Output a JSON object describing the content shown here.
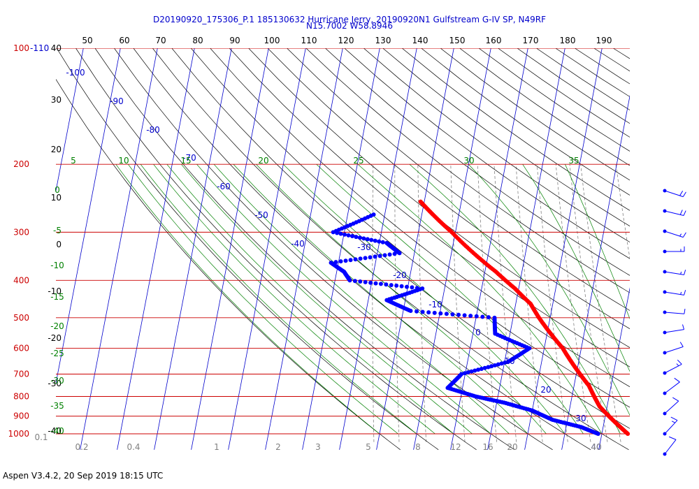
{
  "header": {
    "title_line1": "D20190920_175306_P.1 185130632 Hurricane Jerry, 20190920N1 Gulfstream G-IV SP, N49RF",
    "title_line2": "N15.7002 W58.8946"
  },
  "footer": {
    "text": "Aspen V3.4.2, 20 Sep 2019  18:15 UTC"
  },
  "colors": {
    "temperature": "#ff0000",
    "dewpoint": "#0000ff",
    "isobar": "#cc0000",
    "dry_adiabat": "#000000",
    "moist_adiabat": "#008000",
    "mixing_ratio": "#808080",
    "isotherm": "#0000cc"
  },
  "chart_data": {
    "type": "skew-t",
    "top_axis_ticks": [
      "50",
      "60",
      "70",
      "80",
      "90",
      "100",
      "110",
      "120",
      "130",
      "140",
      "150",
      "160",
      "170",
      "180",
      "190"
    ],
    "pressure_labels": [
      {
        "p": 100,
        "label": "100",
        "extra": "-110"
      },
      {
        "p": 200,
        "label": "200"
      },
      {
        "p": 300,
        "label": "300"
      },
      {
        "p": 400,
        "label": "400"
      },
      {
        "p": 500,
        "label": "500"
      },
      {
        "p": 600,
        "label": "600"
      },
      {
        "p": 700,
        "label": "700"
      },
      {
        "p": 800,
        "label": "800"
      },
      {
        "p": 900,
        "label": "900"
      },
      {
        "p": 1000,
        "label": "1000"
      }
    ],
    "altitude_labels": [
      "40",
      "30",
      "20",
      "10",
      "0",
      "-10",
      "-20",
      "-30",
      "-40"
    ],
    "isotherm_labels": [
      "-100",
      "-90",
      "-80",
      "-70",
      "-60",
      "-50",
      "-40",
      "-30",
      "-20",
      "-10",
      "0",
      "10",
      "20",
      "30",
      "40"
    ],
    "moist_adiabat_top_labels": [
      "5",
      "10",
      "15",
      "20",
      "25",
      "30",
      "35"
    ],
    "moist_adiabat_left_labels": [
      "0",
      "-5",
      "-10",
      "-15",
      "-20",
      "-25",
      "-30",
      "-35",
      "-40"
    ],
    "mixing_ratio_labels": [
      "0.1",
      "0.2",
      "0.4",
      "1",
      "2",
      "3",
      "5",
      "8",
      "12",
      "16",
      "20",
      "40"
    ],
    "temperature": [
      {
        "p": 250,
        "t": -41
      },
      {
        "p": 270,
        "t": -37
      },
      {
        "p": 300,
        "t": -31
      },
      {
        "p": 340,
        "t": -24
      },
      {
        "p": 380,
        "t": -17
      },
      {
        "p": 420,
        "t": -11
      },
      {
        "p": 460,
        "t": -6
      },
      {
        "p": 500,
        "t": -3
      },
      {
        "p": 550,
        "t": 1
      },
      {
        "p": 600,
        "t": 5
      },
      {
        "p": 650,
        "t": 8
      },
      {
        "p": 700,
        "t": 11
      },
      {
        "p": 750,
        "t": 14
      },
      {
        "p": 800,
        "t": 16
      },
      {
        "p": 850,
        "t": 18
      },
      {
        "p": 900,
        "t": 21
      },
      {
        "p": 950,
        "t": 24
      },
      {
        "p": 1000,
        "t": 27
      }
    ],
    "dewpoint": [
      {
        "p": 270,
        "t": -53
      },
      {
        "p": 300,
        "t": -63
      },
      {
        "p": 320,
        "t": -48
      },
      {
        "p": 340,
        "t": -44
      },
      {
        "p": 360,
        "t": -62
      },
      {
        "p": 380,
        "t": -58
      },
      {
        "p": 400,
        "t": -56
      },
      {
        "p": 420,
        "t": -36
      },
      {
        "p": 450,
        "t": -45
      },
      {
        "p": 480,
        "t": -38
      },
      {
        "p": 500,
        "t": -15
      },
      {
        "p": 550,
        "t": -14
      },
      {
        "p": 600,
        "t": -4
      },
      {
        "p": 650,
        "t": -9
      },
      {
        "p": 700,
        "t": -21
      },
      {
        "p": 760,
        "t": -24
      },
      {
        "p": 800,
        "t": -16
      },
      {
        "p": 830,
        "t": -8
      },
      {
        "p": 870,
        "t": 0
      },
      {
        "p": 920,
        "t": 6
      },
      {
        "p": 960,
        "t": 14
      },
      {
        "p": 1000,
        "t": 19
      }
    ],
    "wind_barbs": [
      {
        "speed_kt": 20,
        "dir_deg": 70
      },
      {
        "speed_kt": 20,
        "dir_deg": 75
      },
      {
        "speed_kt": 15,
        "dir_deg": 70
      },
      {
        "speed_kt": 15,
        "dir_deg": 90
      },
      {
        "speed_kt": 15,
        "dir_deg": 80
      },
      {
        "speed_kt": 15,
        "dir_deg": 80
      },
      {
        "speed_kt": 10,
        "dir_deg": 85
      },
      {
        "speed_kt": 10,
        "dir_deg": 100
      },
      {
        "speed_kt": 10,
        "dir_deg": 110
      },
      {
        "speed_kt": 15,
        "dir_deg": 120
      },
      {
        "speed_kt": 10,
        "dir_deg": 130
      },
      {
        "speed_kt": 10,
        "dir_deg": 135
      },
      {
        "speed_kt": 15,
        "dir_deg": 140
      },
      {
        "speed_kt": 10,
        "dir_deg": 145
      }
    ]
  }
}
